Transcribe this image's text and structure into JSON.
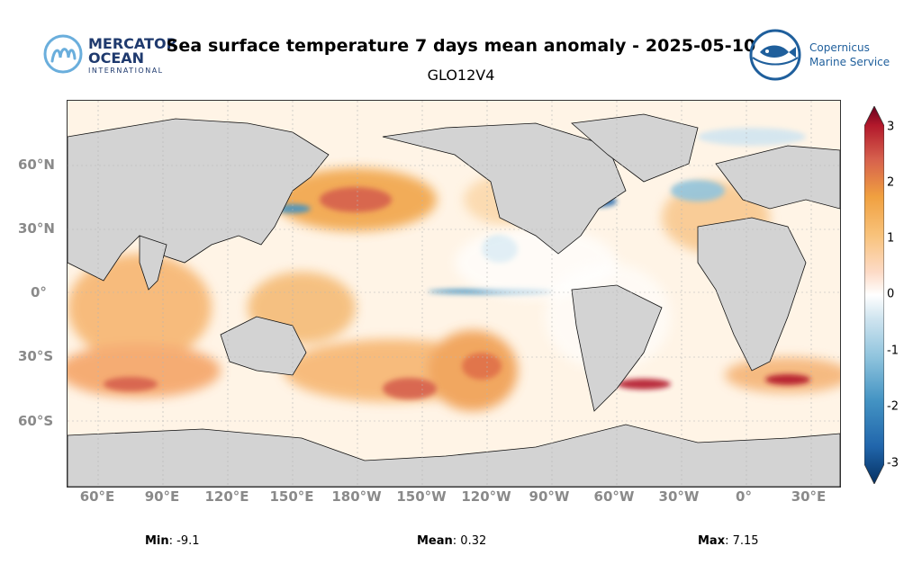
{
  "title": "Sea surface temperature 7 days mean anomaly - 2025-05-10",
  "subtitle": "GLO12V4",
  "logos": {
    "mercator": {
      "line1": "MERCATOR",
      "line2": "OCEAN",
      "line3": "INTERNATIONAL"
    },
    "copernicus": {
      "line1": "Copernicus",
      "line2": "Marine Service"
    }
  },
  "map": {
    "x_ticks": [
      "60°E",
      "90°E",
      "120°E",
      "150°E",
      "180°W",
      "150°W",
      "120°W",
      "90°W",
      "60°W",
      "30°W",
      "0°",
      "30°E"
    ],
    "y_ticks": [
      "60°N",
      "30°N",
      "0°",
      "30°S",
      "60°S"
    ],
    "land_color": "#d3d3d3",
    "coast_color": "#111111"
  },
  "colorbar": {
    "ticks": [
      "3",
      "2",
      "1",
      "0",
      "-1",
      "-2",
      "-3"
    ],
    "colors": [
      "#053061",
      "#2166ac",
      "#4393c3",
      "#92c5de",
      "#d1e5f0",
      "#ffffff",
      "#fddbc7",
      "#f4a582",
      "#f0a040",
      "#d6604d",
      "#b2182b",
      "#67001f"
    ]
  },
  "stats": {
    "min_label": "Min",
    "min_value": ": -9.1",
    "mean_label": "Mean",
    "mean_value": ": 0.32",
    "max_label": "Max",
    "max_value": ": 7.15"
  }
}
